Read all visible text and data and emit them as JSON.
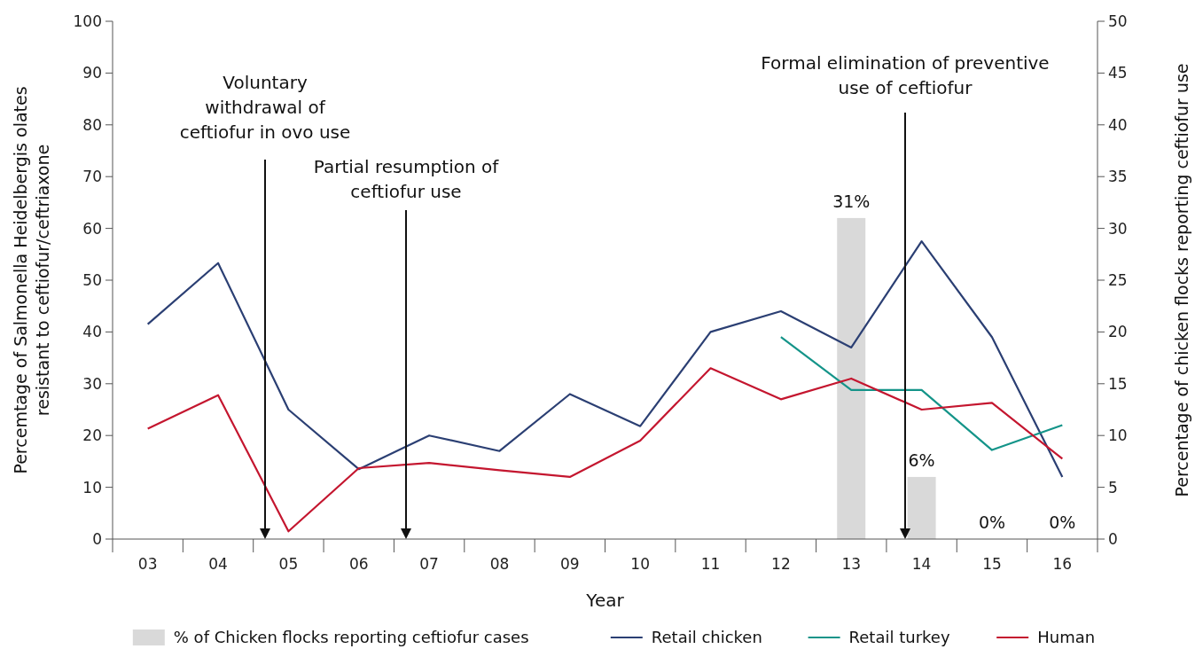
{
  "chart_data": {
    "type": "line",
    "xlabel": "Year",
    "ylabel": "Percemtage of Salmonella Heidelbergis olates\nresistant to ceftiofur/ceftriaxone",
    "y2label": "Percentage of chicken flocks reporting ceftiofur use",
    "categories": [
      "03",
      "04",
      "05",
      "06",
      "07",
      "08",
      "09",
      "10",
      "11",
      "12",
      "13",
      "14",
      "15",
      "16"
    ],
    "ylim": [
      0,
      100
    ],
    "yticks": [
      0,
      10,
      20,
      30,
      40,
      50,
      60,
      70,
      80,
      90,
      100
    ],
    "y2lim": [
      0,
      50
    ],
    "y2ticks": [
      0,
      5,
      10,
      15,
      20,
      25,
      30,
      35,
      40,
      45,
      50
    ],
    "legend": "bottom",
    "grid": false,
    "marker": "none",
    "line_style": "solid",
    "series": [
      {
        "name": "% of Chicken flocks reporting ceftiofur cases",
        "type": "bar",
        "axis": "y2",
        "color": "#d9d9d9",
        "values": [
          null,
          null,
          null,
          null,
          null,
          null,
          null,
          null,
          null,
          null,
          31,
          6,
          0,
          0
        ],
        "value_labels": [
          null,
          null,
          null,
          null,
          null,
          null,
          null,
          null,
          null,
          null,
          "31%",
          "6%",
          "0%",
          "0%"
        ]
      },
      {
        "name": "Retail chicken",
        "color": "#2b3f73",
        "values": [
          41.5,
          53.3,
          25,
          13.5,
          20,
          17,
          28,
          21.8,
          40,
          44,
          37,
          57.5,
          39,
          12
        ]
      },
      {
        "name": "Retail turkey",
        "color": "#149489",
        "values": [
          null,
          null,
          null,
          null,
          null,
          null,
          null,
          null,
          null,
          39,
          28.8,
          28.8,
          17.2,
          22
        ]
      },
      {
        "name": "Human",
        "color": "#c4162f",
        "values": [
          21.3,
          27.8,
          1.5,
          13.7,
          14.7,
          13.3,
          12,
          19,
          33,
          27,
          31,
          25,
          26.3,
          15.5
        ]
      }
    ],
    "annotations": [
      "Voluntary\nwithdrawal of\nceftiofur in ovo use",
      "Partial resumption of\nceftiofur use",
      "Formal elimination of preventive\nuse of ceftiofur"
    ]
  }
}
